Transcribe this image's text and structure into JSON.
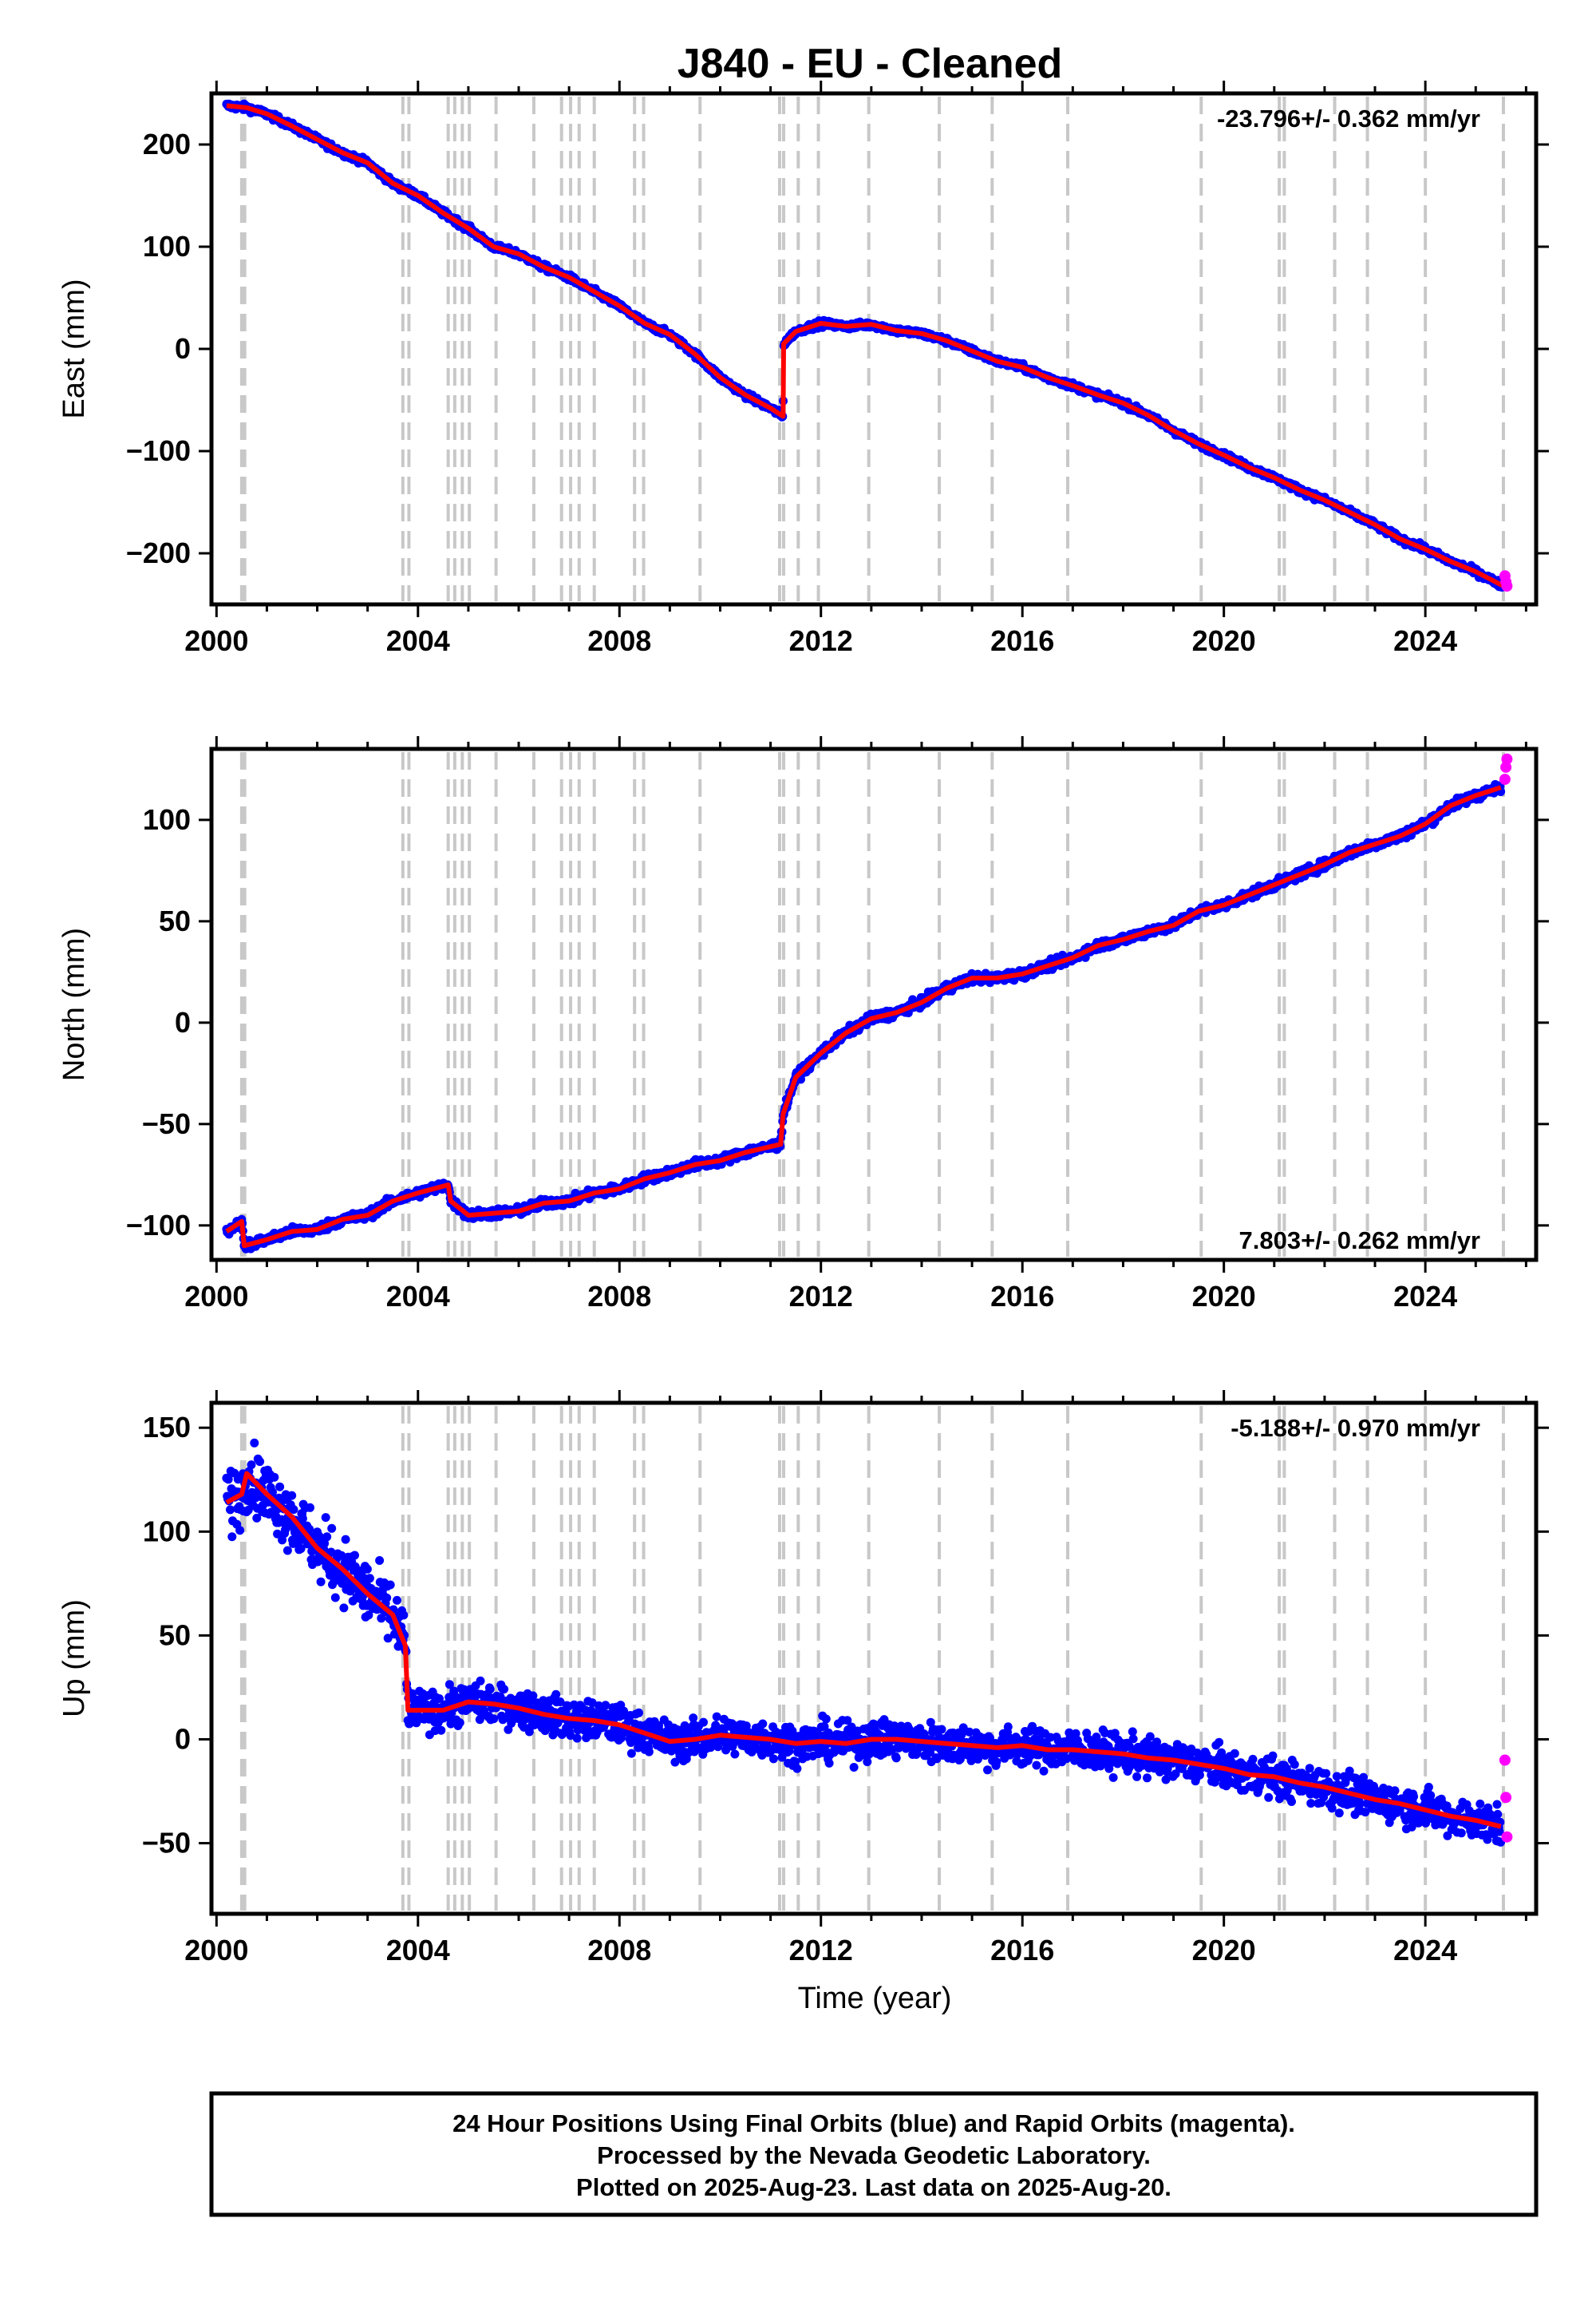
{
  "title": "J840  - EU - Cleaned",
  "xlabel": "Time (year)",
  "xticks": [
    "2000",
    "2004",
    "2008",
    "2012",
    "2016",
    "2020",
    "2024"
  ],
  "colors": {
    "final": "#0000ff",
    "rapid": "#ff00ff",
    "model": "#ff0000",
    "events": "#c8c8c8"
  },
  "footer": {
    "line1": "24 Hour Positions Using Final Orbits (blue) and Rapid Orbits (magenta).",
    "line2": "Processed by the Nevada Geodetic Laboratory.",
    "line3": "Plotted on 2025-Aug-23. Last data on 2025-Aug-20."
  },
  "chart_data": [
    {
      "type": "scatter",
      "ylabel": "East (mm)",
      "rate_text": "-23.796+/- 0.362 mm/yr",
      "rate_position": "top-right",
      "xlim": [
        1999.9,
        2026.2
      ],
      "ylim": [
        -250,
        250
      ],
      "yticks": [
        200,
        100,
        0,
        -100,
        -200
      ],
      "ytick_labels": [
        "200",
        "100",
        "0",
        "−100",
        "−200"
      ],
      "events": [
        2000.5,
        2000.56,
        2003.7,
        2003.82,
        2004.6,
        2004.73,
        2004.88,
        2005.02,
        2005.55,
        2006.3,
        2006.85,
        2007.03,
        2007.2,
        2007.5,
        2008.3,
        2008.48,
        2009.6,
        2011.18,
        2011.26,
        2011.55,
        2011.95,
        2012.95,
        2014.35,
        2015.4,
        2016.9,
        2019.55,
        2021.1,
        2021.2,
        2022.2,
        2022.85,
        2024.0,
        2025.55
      ],
      "series": [
        {
          "name": "Final Orbits (blue)",
          "points": [
            [
              2000.2,
              238
            ],
            [
              2000.6,
              236
            ],
            [
              2001.0,
              230
            ],
            [
              2001.5,
              218
            ],
            [
              2002.0,
              205
            ],
            [
              2002.5,
              192
            ],
            [
              2003.0,
              182
            ],
            [
              2003.5,
              162
            ],
            [
              2004.0,
              150
            ],
            [
              2004.5,
              133
            ],
            [
              2005.0,
              118
            ],
            [
              2005.5,
              100
            ],
            [
              2006.0,
              93
            ],
            [
              2006.5,
              80
            ],
            [
              2007.0,
              70
            ],
            [
              2007.5,
              56
            ],
            [
              2008.0,
              42
            ],
            [
              2008.5,
              25
            ],
            [
              2009.0,
              14
            ],
            [
              2009.5,
              -5
            ],
            [
              2010.0,
              -28
            ],
            [
              2010.5,
              -45
            ],
            [
              2011.0,
              -58
            ],
            [
              2011.25,
              -66
            ],
            [
              2011.26,
              5
            ],
            [
              2011.5,
              17
            ],
            [
              2012.0,
              25
            ],
            [
              2012.5,
              22
            ],
            [
              2013.0,
              24
            ],
            [
              2013.5,
              18
            ],
            [
              2014.0,
              15
            ],
            [
              2014.5,
              8
            ],
            [
              2015.0,
              -2
            ],
            [
              2015.5,
              -12
            ],
            [
              2016.0,
              -18
            ],
            [
              2016.5,
              -28
            ],
            [
              2017.0,
              -36
            ],
            [
              2017.5,
              -45
            ],
            [
              2018.0,
              -53
            ],
            [
              2018.5,
              -65
            ],
            [
              2019.0,
              -80
            ],
            [
              2019.5,
              -93
            ],
            [
              2020.0,
              -104
            ],
            [
              2020.5,
              -116
            ],
            [
              2021.0,
              -126
            ],
            [
              2021.5,
              -138
            ],
            [
              2022.0,
              -148
            ],
            [
              2022.5,
              -160
            ],
            [
              2023.0,
              -172
            ],
            [
              2023.5,
              -186
            ],
            [
              2024.0,
              -196
            ],
            [
              2024.5,
              -208
            ],
            [
              2025.0,
              -218
            ],
            [
              2025.55,
              -232
            ]
          ]
        },
        {
          "name": "Rapid Orbits (magenta)",
          "points": [
            [
              2025.58,
              -222
            ],
            [
              2025.6,
              -228
            ],
            [
              2025.62,
              -232
            ]
          ]
        }
      ]
    },
    {
      "type": "scatter",
      "ylabel": "North (mm)",
      "rate_text": "7.803+/- 0.262 mm/yr",
      "rate_position": "bottom-right",
      "xlim": [
        1999.9,
        2026.2
      ],
      "ylim": [
        -117,
        135
      ],
      "yticks": [
        100,
        50,
        0,
        -50,
        -100
      ],
      "ytick_labels": [
        "100",
        "50",
        "0",
        "−50",
        "−100"
      ],
      "events": [
        2000.5,
        2000.56,
        2003.7,
        2003.82,
        2004.6,
        2004.73,
        2004.88,
        2005.02,
        2005.55,
        2006.3,
        2006.85,
        2007.03,
        2007.2,
        2007.5,
        2008.3,
        2008.48,
        2009.6,
        2011.18,
        2011.26,
        2011.55,
        2011.95,
        2012.95,
        2014.35,
        2015.4,
        2016.9,
        2019.55,
        2021.1,
        2021.2,
        2022.2,
        2022.85,
        2024.0,
        2025.55
      ],
      "series": [
        {
          "name": "Final Orbits (blue)",
          "points": [
            [
              2000.2,
              -103
            ],
            [
              2000.5,
              -98
            ],
            [
              2000.55,
              -110
            ],
            [
              2001.0,
              -107
            ],
            [
              2001.5,
              -103
            ],
            [
              2002.0,
              -102
            ],
            [
              2002.5,
              -97
            ],
            [
              2003.0,
              -95
            ],
            [
              2003.5,
              -88
            ],
            [
              2004.0,
              -84
            ],
            [
              2004.6,
              -80
            ],
            [
              2004.65,
              -88
            ],
            [
              2005.0,
              -95
            ],
            [
              2005.5,
              -94
            ],
            [
              2006.0,
              -93
            ],
            [
              2006.5,
              -89
            ],
            [
              2007.0,
              -88
            ],
            [
              2007.5,
              -84
            ],
            [
              2008.0,
              -82
            ],
            [
              2008.5,
              -77
            ],
            [
              2009.0,
              -74
            ],
            [
              2009.5,
              -70
            ],
            [
              2010.0,
              -68
            ],
            [
              2010.5,
              -64
            ],
            [
              2011.2,
              -60
            ],
            [
              2011.25,
              -45
            ],
            [
              2011.5,
              -27
            ],
            [
              2012.0,
              -15
            ],
            [
              2012.5,
              -5
            ],
            [
              2013.0,
              2
            ],
            [
              2013.5,
              5
            ],
            [
              2014.0,
              10
            ],
            [
              2014.5,
              17
            ],
            [
              2015.0,
              22
            ],
            [
              2015.5,
              22
            ],
            [
              2016.0,
              24
            ],
            [
              2016.5,
              28
            ],
            [
              2017.0,
              32
            ],
            [
              2017.5,
              38
            ],
            [
              2018.0,
              41
            ],
            [
              2018.5,
              45
            ],
            [
              2019.0,
              48
            ],
            [
              2019.5,
              55
            ],
            [
              2020.0,
              58
            ],
            [
              2020.5,
              63
            ],
            [
              2021.0,
              68
            ],
            [
              2021.5,
              73
            ],
            [
              2022.0,
              78
            ],
            [
              2022.5,
              84
            ],
            [
              2023.0,
              88
            ],
            [
              2023.5,
              92
            ],
            [
              2024.0,
              98
            ],
            [
              2024.5,
              107
            ],
            [
              2025.0,
              112
            ],
            [
              2025.5,
              116
            ]
          ]
        },
        {
          "name": "Rapid Orbits (magenta)",
          "points": [
            [
              2025.58,
              120
            ],
            [
              2025.6,
              126
            ],
            [
              2025.62,
              130
            ]
          ]
        }
      ]
    },
    {
      "type": "scatter",
      "ylabel": "Up (mm)",
      "rate_text": "-5.188+/- 0.970 mm/yr",
      "rate_position": "top-right",
      "xlim": [
        1999.9,
        2026.2
      ],
      "ylim": [
        -84,
        162
      ],
      "yticks": [
        150,
        100,
        50,
        0,
        -50
      ],
      "ytick_labels": [
        "150",
        "100",
        "50",
        "0",
        "−50"
      ],
      "events": [
        2000.5,
        2000.56,
        2003.7,
        2003.82,
        2004.6,
        2004.73,
        2004.88,
        2005.02,
        2005.55,
        2006.3,
        2006.85,
        2007.03,
        2007.2,
        2007.5,
        2008.3,
        2008.48,
        2009.6,
        2011.18,
        2011.26,
        2011.55,
        2011.95,
        2012.95,
        2014.35,
        2015.4,
        2016.9,
        2019.55,
        2021.1,
        2021.2,
        2022.2,
        2022.85,
        2024.0,
        2025.55
      ],
      "series": [
        {
          "name": "Final Orbits (blue)",
          "points": [
            [
              2000.2,
              114
            ],
            [
              2000.5,
              118
            ],
            [
              2000.6,
              128
            ],
            [
              2001.0,
              118
            ],
            [
              2001.5,
              107
            ],
            [
              2002.0,
              92
            ],
            [
              2002.5,
              82
            ],
            [
              2003.0,
              70
            ],
            [
              2003.5,
              60
            ],
            [
              2003.75,
              45
            ],
            [
              2003.8,
              14
            ],
            [
              2004.0,
              14
            ],
            [
              2004.5,
              14
            ],
            [
              2005.0,
              18
            ],
            [
              2005.5,
              17
            ],
            [
              2006.0,
              15
            ],
            [
              2006.5,
              12
            ],
            [
              2007.0,
              10
            ],
            [
              2007.5,
              9
            ],
            [
              2008.0,
              7
            ],
            [
              2008.5,
              3
            ],
            [
              2009.0,
              -1
            ],
            [
              2009.5,
              0
            ],
            [
              2010.0,
              2
            ],
            [
              2010.5,
              1
            ],
            [
              2011.0,
              0
            ],
            [
              2011.5,
              -2
            ],
            [
              2012.0,
              -1
            ],
            [
              2012.5,
              -2
            ],
            [
              2013.0,
              0
            ],
            [
              2013.5,
              0
            ],
            [
              2014.0,
              -1
            ],
            [
              2014.5,
              -2
            ],
            [
              2015.0,
              -3
            ],
            [
              2015.5,
              -4
            ],
            [
              2016.0,
              -3
            ],
            [
              2016.5,
              -5
            ],
            [
              2017.0,
              -5
            ],
            [
              2017.5,
              -6
            ],
            [
              2018.0,
              -7
            ],
            [
              2018.5,
              -9
            ],
            [
              2019.0,
              -10
            ],
            [
              2019.5,
              -12
            ],
            [
              2020.0,
              -14
            ],
            [
              2020.5,
              -17
            ],
            [
              2021.0,
              -18
            ],
            [
              2021.5,
              -21
            ],
            [
              2022.0,
              -23
            ],
            [
              2022.5,
              -26
            ],
            [
              2023.0,
              -29
            ],
            [
              2023.5,
              -31
            ],
            [
              2024.0,
              -34
            ],
            [
              2024.5,
              -37
            ],
            [
              2025.0,
              -39
            ],
            [
              2025.5,
              -42
            ]
          ]
        },
        {
          "name": "Rapid Orbits (magenta)",
          "points": [
            [
              2025.58,
              -10
            ],
            [
              2025.6,
              -28
            ],
            [
              2025.62,
              -47
            ]
          ]
        }
      ]
    }
  ]
}
